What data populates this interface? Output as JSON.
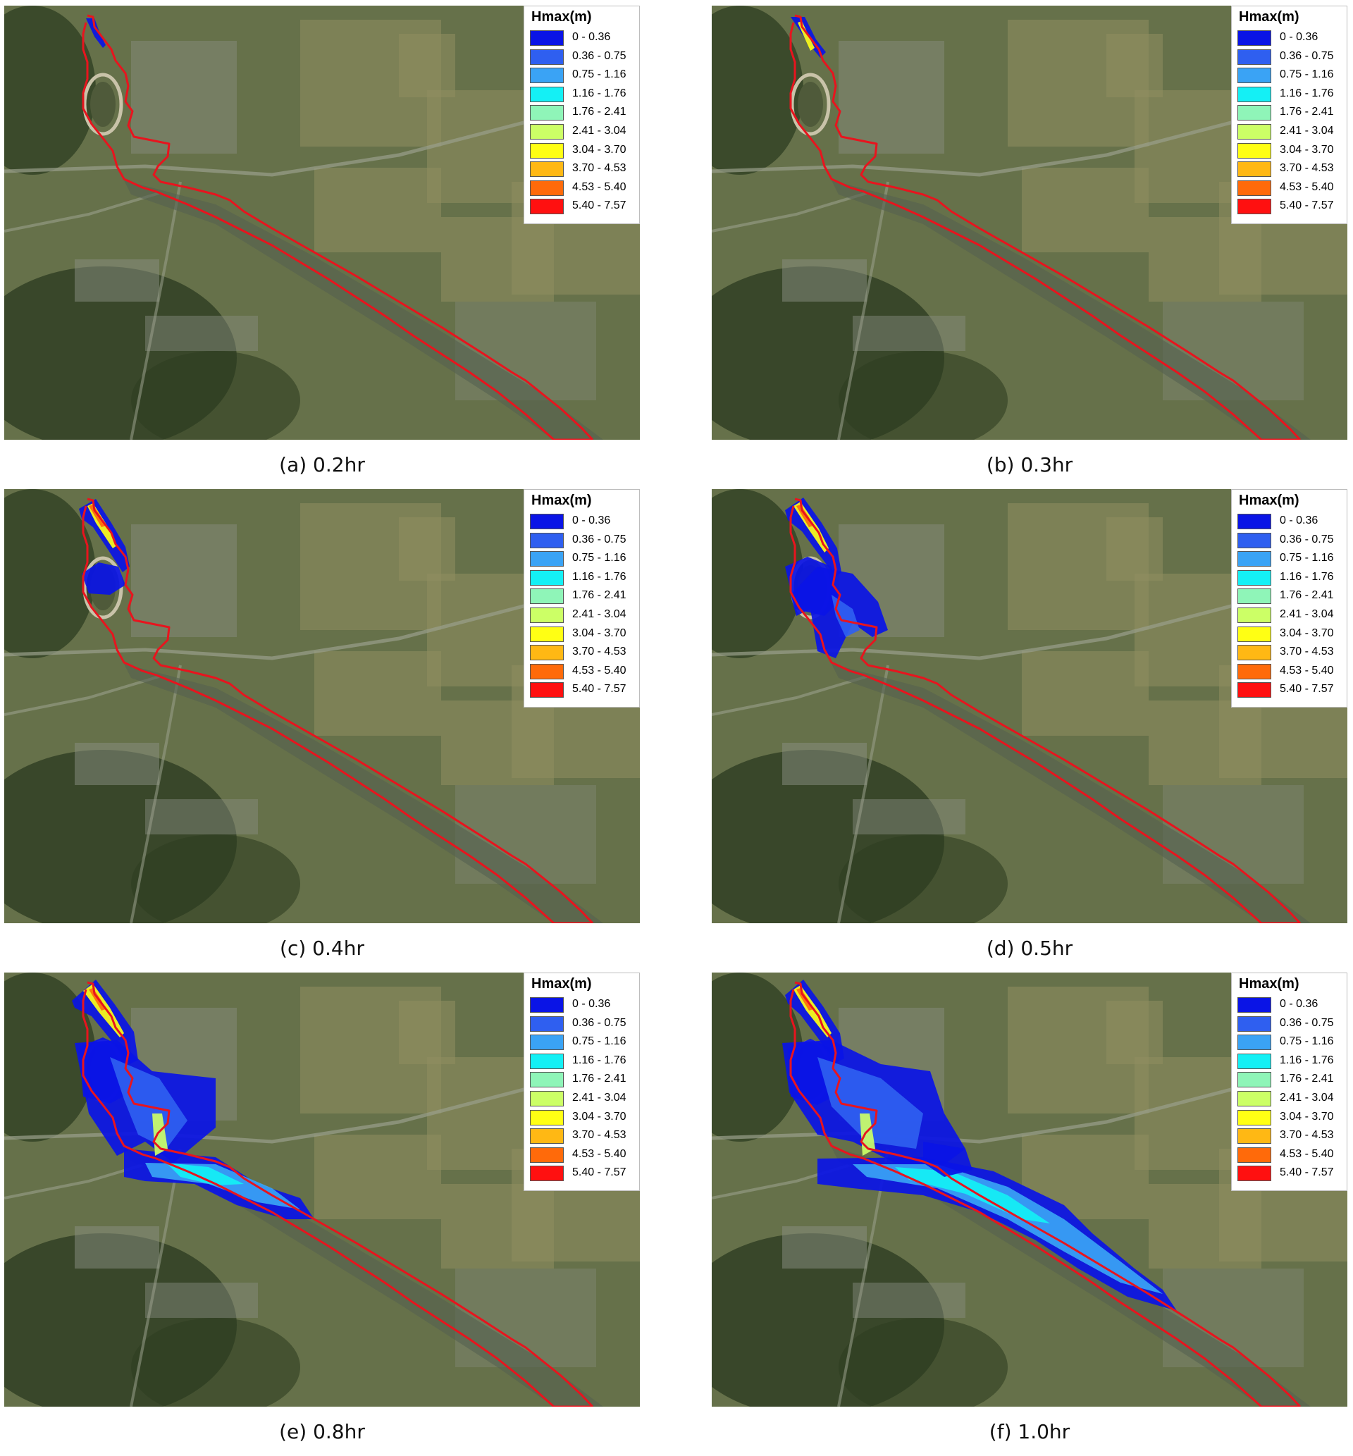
{
  "legend": {
    "title": "Hmax(m)",
    "classes": [
      {
        "label": "0 - 0.36",
        "color": "#0a14e6"
      },
      {
        "label": "0.36 - 0.75",
        "color": "#2f5ff0"
      },
      {
        "label": "0.75 - 1.16",
        "color": "#3aa3f5"
      },
      {
        "label": "1.16 - 1.76",
        "color": "#14f0f5"
      },
      {
        "label": "1.76 - 2.41",
        "color": "#8ff5b8"
      },
      {
        "label": "2.41 - 3.04",
        "color": "#ccff66"
      },
      {
        "label": "3.04 - 3.70",
        "color": "#ffff14"
      },
      {
        "label": "3.70 - 4.53",
        "color": "#ffb814"
      },
      {
        "label": "4.53 - 5.40",
        "color": "#ff6a0a"
      },
      {
        "label": "5.40 - 7.57",
        "color": "#ff1010"
      }
    ]
  },
  "panels": [
    {
      "caption": "(a) 0.2hr",
      "stage": 1
    },
    {
      "caption": "(b) 0.3hr",
      "stage": 2
    },
    {
      "caption": "(c) 0.4hr",
      "stage": 3
    },
    {
      "caption": "(d) 0.5hr",
      "stage": 4
    },
    {
      "caption": "(e) 0.8hr",
      "stage": 5
    },
    {
      "caption": "(f) 1.0hr",
      "stage": 6
    }
  ],
  "colors": {
    "boundary": "#e8141e",
    "terrain_base": "#66714a",
    "fields": "#8f8e60",
    "forest": "#2e3d22",
    "urban": "#8a8f82",
    "river": "#556050"
  }
}
